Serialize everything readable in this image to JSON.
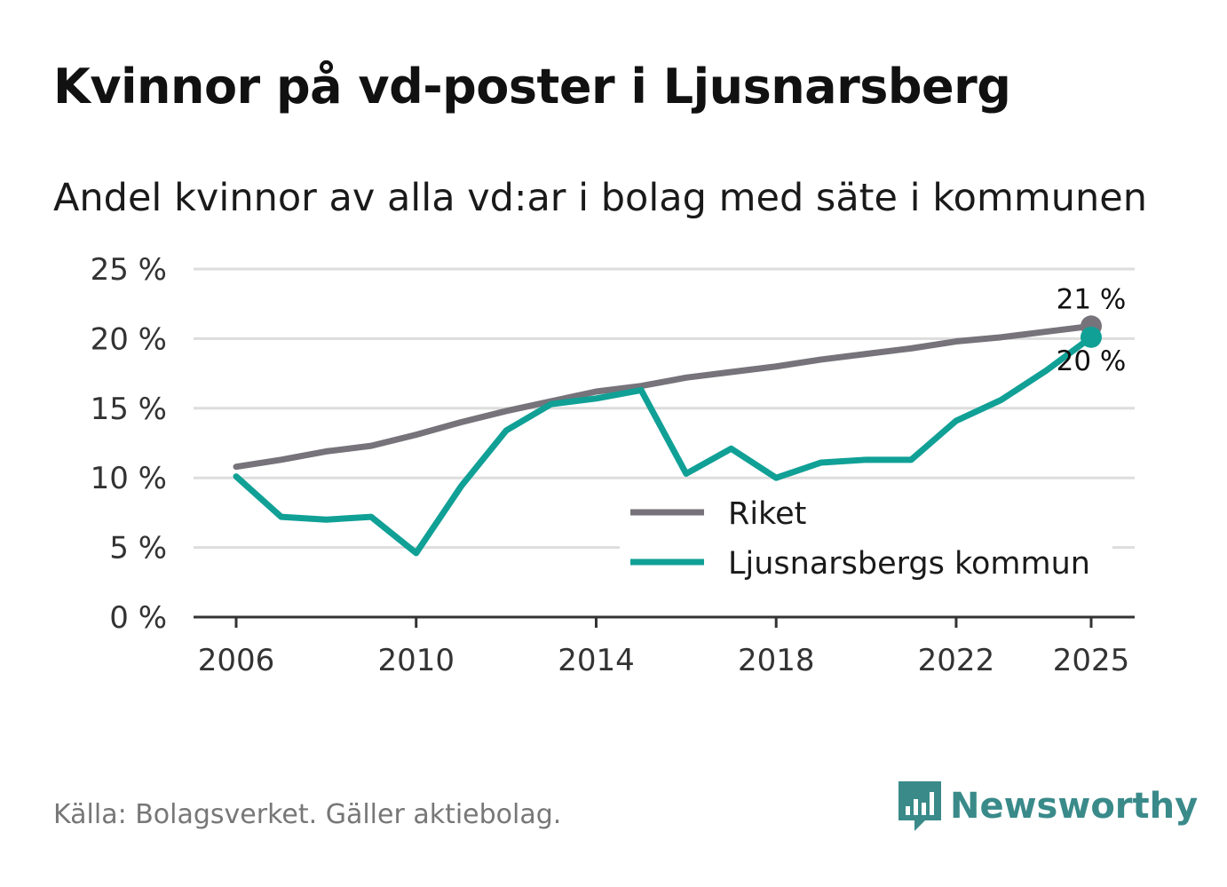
{
  "title": "Kvinnor på vd-poster i Ljusnarsberg",
  "subtitle": "Andel kvinnor av alla vd:ar i bolag med säte i kommunen",
  "source": "Källa: Bolagsverket. Gäller aktiebolag.",
  "brand": "Newsworthy",
  "colors": {
    "riket": "#76737a",
    "kommun": "#10a096",
    "grid": "#dddddd",
    "axis": "#333333"
  },
  "chart_data": {
    "type": "line",
    "title": "Kvinnor på vd-poster i Ljusnarsberg",
    "ylim": [
      0,
      25
    ],
    "y_ticks": [
      "0 %",
      "5 %",
      "10 %",
      "15 %",
      "20 %",
      "25 %"
    ],
    "x_ticks": [
      "2006",
      "2010",
      "2014",
      "2018",
      "2022",
      "2025"
    ],
    "x": [
      2006,
      2007,
      2008,
      2009,
      2010,
      2011,
      2012,
      2013,
      2014,
      2015,
      2016,
      2017,
      2018,
      2019,
      2020,
      2021,
      2022,
      2023,
      2024,
      2025
    ],
    "series": [
      {
        "name": "Riket",
        "values": [
          10.8,
          11.3,
          11.9,
          12.3,
          13.1,
          14.0,
          14.8,
          15.5,
          16.2,
          16.6,
          17.2,
          17.6,
          18.0,
          18.5,
          18.9,
          19.3,
          19.8,
          20.1,
          20.5,
          20.9
        ],
        "end_label": "21 %"
      },
      {
        "name": "Ljusnarsbergs kommun",
        "values": [
          10.1,
          7.2,
          7.0,
          7.2,
          4.6,
          9.4,
          13.4,
          15.3,
          15.7,
          16.3,
          10.3,
          12.1,
          10.0,
          11.1,
          11.3,
          11.3,
          14.1,
          15.6,
          17.7,
          20.1
        ],
        "end_label": "20 %"
      }
    ],
    "legend": [
      "Riket",
      "Ljusnarsbergs kommun"
    ]
  }
}
